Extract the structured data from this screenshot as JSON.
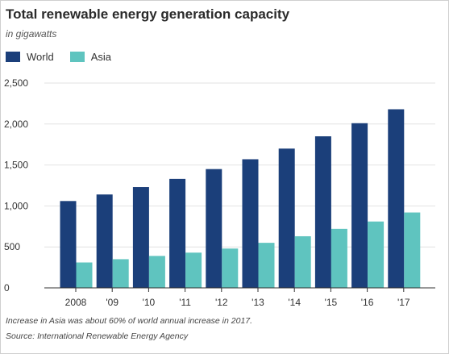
{
  "colors": {
    "world": "#1b3f7a",
    "asia": "#5fc4bf",
    "grid": "#e2e2e2",
    "axis": "#333333"
  },
  "chart_data": {
    "type": "bar",
    "title": "Total renewable energy generation capacity",
    "subtitle": "in gigawatts",
    "categories": [
      "2008",
      "'09",
      "'10",
      "'11",
      "'12",
      "'13",
      "'14",
      "'15",
      "'16",
      "'17"
    ],
    "series": [
      {
        "name": "World",
        "values": [
          1060,
          1140,
          1230,
          1330,
          1450,
          1570,
          1700,
          1850,
          2010,
          2180
        ]
      },
      {
        "name": "Asia",
        "values": [
          310,
          350,
          390,
          430,
          480,
          550,
          630,
          720,
          810,
          920
        ]
      }
    ],
    "ylim": [
      0,
      2500
    ],
    "yticks": [
      0,
      500,
      1000,
      1500,
      2000,
      2500
    ],
    "ytick_labels": [
      "0",
      "500",
      "1,000",
      "1,500",
      "2,000",
      "2,500"
    ],
    "grid": true,
    "legend": "top-left",
    "notes": [
      "Increase in Asia was about 60% of world annual increase in 2017.",
      "Source: International Renewable Energy Agency"
    ]
  }
}
